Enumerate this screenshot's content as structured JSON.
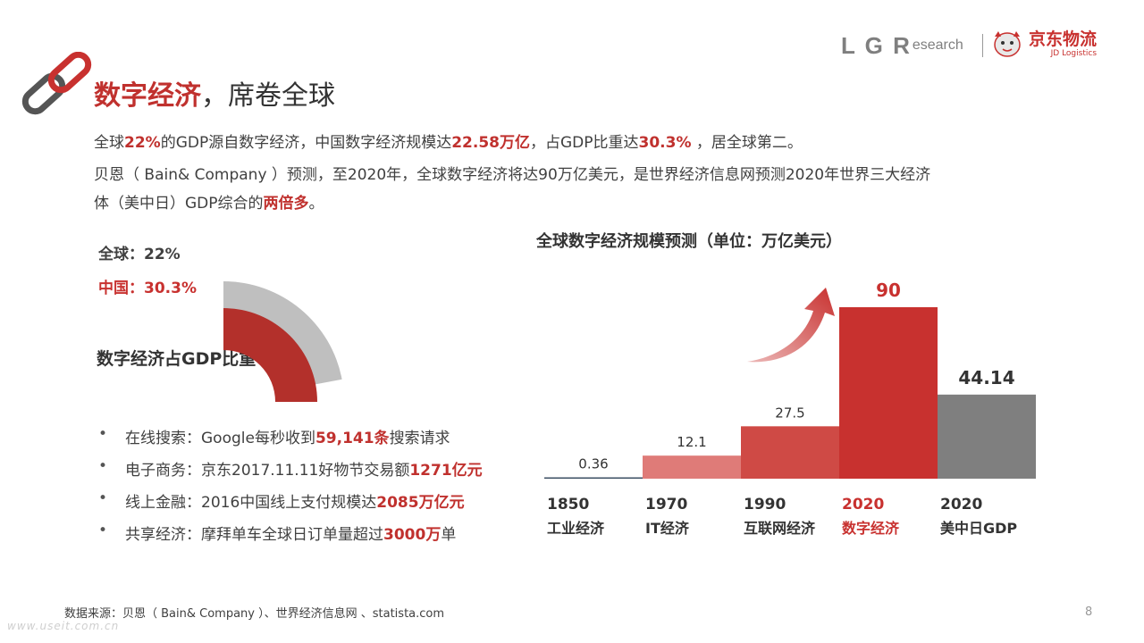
{
  "header": {
    "brand_logr": "L G R",
    "brand_research": "esearch",
    "brand_jd": "京东物流",
    "brand_jd_sub": "JD Logistics"
  },
  "title": {
    "bold": "数字经济",
    "rest": "，席卷全球"
  },
  "intro": {
    "line1": [
      {
        "t": "全球",
        "b": false
      },
      {
        "t": "22%",
        "b": true
      },
      {
        "t": "的GDP源自数字经济，中国数字经济规模达",
        "b": false
      },
      {
        "t": "22.58万亿",
        "b": true
      },
      {
        "t": "，占GDP比重达",
        "b": false
      },
      {
        "t": "30.3%",
        "b": true
      },
      {
        "t": " ，居全球第二。",
        "b": false
      }
    ],
    "line2a": "贝恩（ Bain& Company ）预测，至2020年，全球数字经济将达90万亿美元，是世界经济信息网预测2020年世界三大经济",
    "line2b_plain": "体（美中日）GDP综合的",
    "line2b_bold": "两倍多",
    "line2b_end": "。"
  },
  "share": {
    "global_label": "全球：22%",
    "china_label": "中国：30.3%",
    "caption": "数字经济占GDP比重",
    "global_value": 22,
    "china_value": 30.3,
    "global_color": "#bfbfbf",
    "china_color": "#b3302b"
  },
  "bullets": [
    {
      "plain": "在线搜索：Google每秒收到",
      "bold": "59,141条",
      "end": "搜索请求"
    },
    {
      "plain": "电子商务：京东2017.11.11好物节交易额",
      "bold": "1271亿元",
      "end": ""
    },
    {
      "plain": "线上金融：2016中国线上支付规模达",
      "bold": "2085万亿元",
      "end": ""
    },
    {
      "plain": "共享经济：摩拜单车全球日订单量超过",
      "bold": "3000万",
      "end": "单"
    }
  ],
  "chart_data": {
    "type": "bar",
    "title": "全球数字经济规模预测（单位：万亿美元）",
    "categories": [
      "1850",
      "1970",
      "1990",
      "2020",
      "2020"
    ],
    "category_sublabels": [
      "工业经济",
      "IT经济",
      "互联网经济",
      "数字经济",
      "美中日GDP"
    ],
    "values": [
      0.36,
      12.1,
      27.5,
      90,
      44.14
    ],
    "value_labels": [
      "0.36",
      "12.1",
      "27.5",
      "90",
      "44.14"
    ],
    "colors": [
      "#3c4f63",
      "#df7b78",
      "#cf4a45",
      "#c8312f",
      "#7f7f7f"
    ],
    "highlight_index": 3,
    "ylim": [
      0,
      90
    ],
    "grid": false,
    "legend": "none"
  },
  "footer": {
    "source": "数据来源：贝恩（ Bain& Company ）、世界经济信息网 、statista.com",
    "page": "8",
    "watermark": "www.useit.com.cn"
  }
}
